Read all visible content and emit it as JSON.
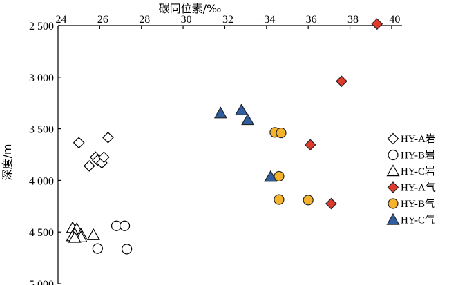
{
  "chart_data": {
    "type": "scatter",
    "title": "",
    "xlabel": "碳同位素/‰",
    "ylabel": "深度/m",
    "xlim": [
      -24,
      -40.5
    ],
    "ylim": [
      2500,
      5000
    ],
    "x_axis_position": "top",
    "y_axis_inverted": true,
    "grid": false,
    "legend_position": "right",
    "x_ticks": [
      -24,
      -26,
      -28,
      -30,
      -32,
      -34,
      -36,
      -38,
      -40
    ],
    "x_tick_labels": [
      "−24",
      "−26",
      "−28",
      "−30",
      "−32",
      "−34",
      "−36",
      "−38",
      "−40"
    ],
    "y_ticks": [
      2500,
      3000,
      3500,
      4000,
      4500,
      5000
    ],
    "y_tick_labels": [
      "2 500",
      "3 000",
      "3 500",
      "4 000",
      "4 500",
      "5 000"
    ],
    "series": [
      {
        "name": "HY-A岩",
        "marker": "diamond",
        "filled": false,
        "color": "#000000",
        "points": [
          [
            -25.0,
            3635
          ],
          [
            -25.8,
            3775
          ],
          [
            -25.9,
            3805
          ],
          [
            -26.1,
            3830
          ],
          [
            -26.2,
            3775
          ],
          [
            -25.5,
            3860
          ],
          [
            -26.4,
            3585
          ]
        ]
      },
      {
        "name": "HY-B岩",
        "marker": "circle",
        "filled": false,
        "color": "#000000",
        "points": [
          [
            -26.8,
            4440
          ],
          [
            -27.2,
            4440
          ],
          [
            -25.9,
            4660
          ],
          [
            -27.3,
            4665
          ]
        ]
      },
      {
        "name": "HY-C岩",
        "marker": "triangle",
        "filled": false,
        "color": "#000000",
        "points": [
          [
            -24.7,
            4460
          ],
          [
            -24.9,
            4470
          ],
          [
            -24.8,
            4520
          ],
          [
            -24.7,
            4540
          ],
          [
            -25.1,
            4525
          ],
          [
            -25.7,
            4530
          ],
          [
            -25.1,
            4550
          ],
          [
            -24.8,
            4555
          ]
        ]
      },
      {
        "name": "HY-A气",
        "marker": "diamond",
        "filled": true,
        "color": "#e03a2e",
        "points": [
          [
            -39.3,
            2485
          ],
          [
            -37.6,
            3040
          ],
          [
            -36.1,
            3655
          ],
          [
            -37.1,
            4225
          ]
        ]
      },
      {
        "name": "HY-B气",
        "marker": "circle",
        "filled": true,
        "color": "#f5b32c",
        "points": [
          [
            -34.4,
            3535
          ],
          [
            -34.7,
            3540
          ],
          [
            -34.6,
            3960
          ],
          [
            -34.6,
            4185
          ],
          [
            -36.0,
            4190
          ]
        ]
      },
      {
        "name": "HY-C气",
        "marker": "triangle",
        "filled": true,
        "color": "#2f5d9e",
        "points": [
          [
            -31.8,
            3350
          ],
          [
            -32.8,
            3320
          ],
          [
            -33.1,
            3415
          ],
          [
            -34.2,
            3965
          ]
        ]
      }
    ]
  }
}
